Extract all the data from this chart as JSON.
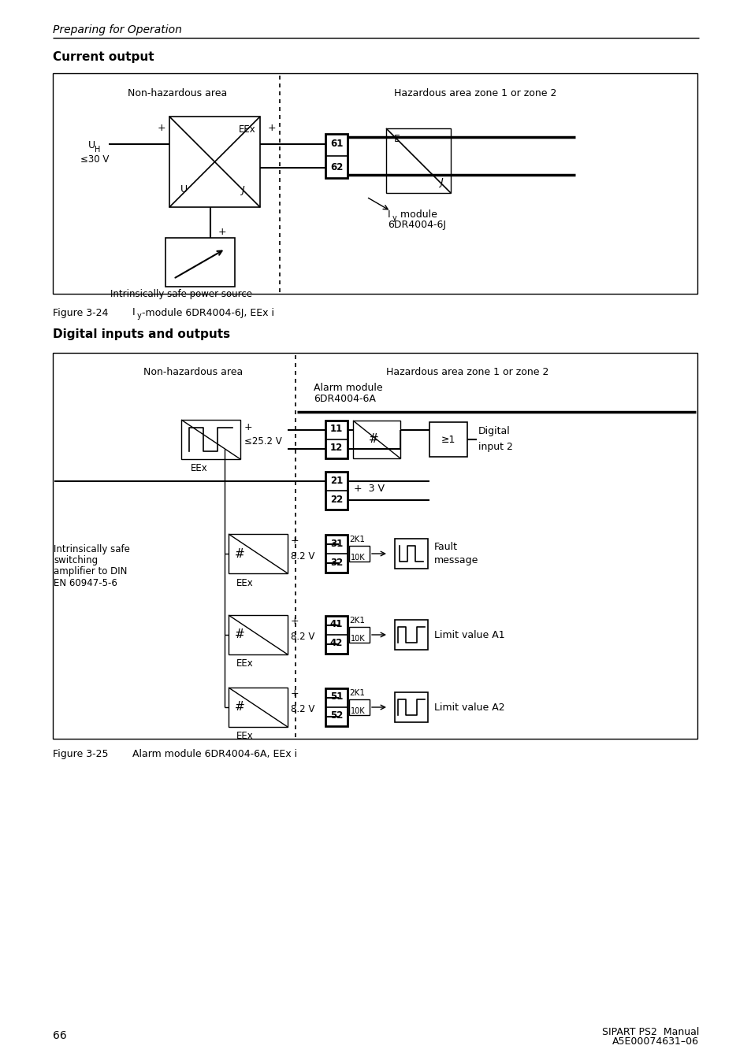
{
  "page_header": "Preparing for Operation",
  "section1_title": "Current output",
  "section2_title": "Digital inputs and outputs",
  "fig1_caption_num": "Figure 3-24",
  "fig1_caption_iy": "I",
  "fig1_caption_y": "y",
  "fig1_caption_rest": "-module 6DR4004-6J, EEx i",
  "fig2_caption_num": "Figure 3-25",
  "fig2_caption_text": "Alarm module 6DR4004-6A, EEx i",
  "footer_page": "66",
  "footer_manual": "SIPART PS2  Manual",
  "footer_ref": "A5E00074631–06",
  "bg": "#ffffff"
}
